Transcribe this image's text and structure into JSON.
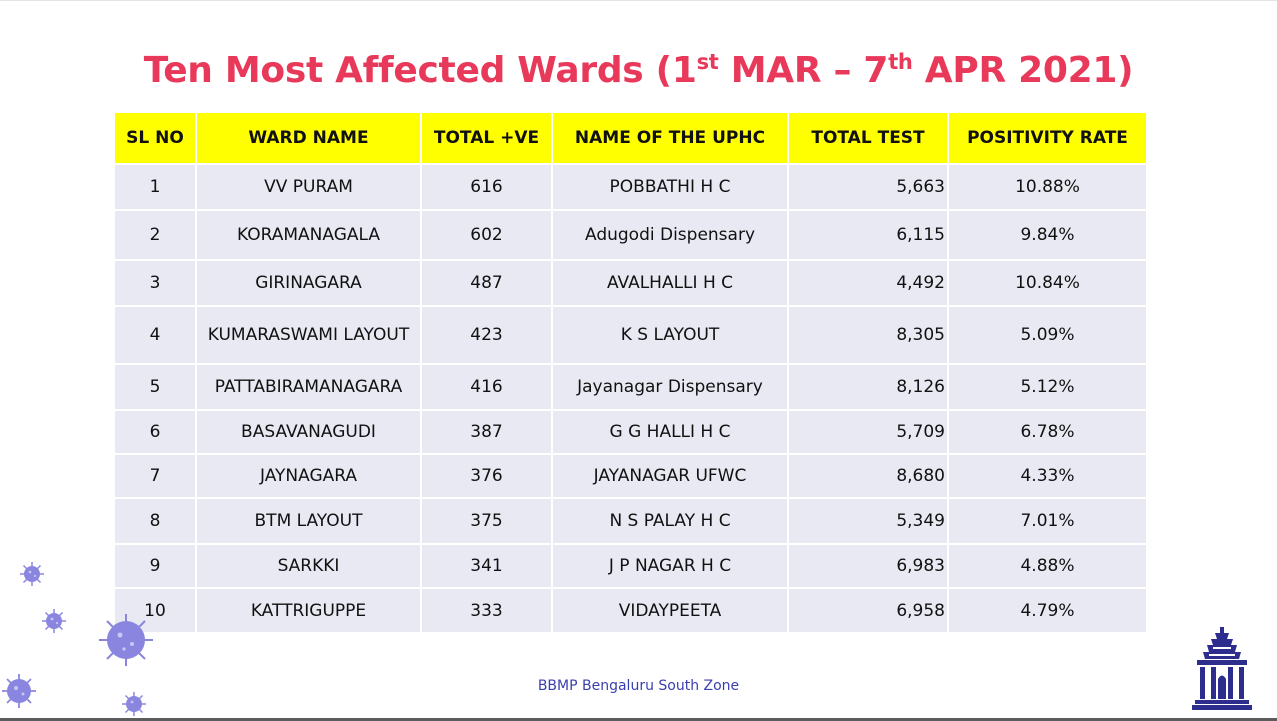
{
  "slide": {
    "title_main": "Ten Most Affected Wards (1",
    "title_sup1": "st",
    "title_mid": " MAR – 7",
    "title_sup2": "th",
    "title_end": " APR 2021)",
    "footer": "BBMP Bengaluru South Zone",
    "logo_icon": "temple-emblem-icon",
    "decor_icon": "virus-icon"
  },
  "table": {
    "headers": [
      "SL NO",
      "WARD NAME",
      "TOTAL +VE",
      "NAME OF THE UPHC",
      "TOTAL TEST",
      "POSITIVITY RATE"
    ],
    "rows": [
      {
        "sl": "1",
        "ward": "VV PURAM",
        "positive": "616",
        "uphc": "POBBATHI H C",
        "tests": "5,663",
        "rate": "10.88%"
      },
      {
        "sl": "2",
        "ward": "KORAMANAGALA",
        "positive": "602",
        "uphc": "Adugodi Dispensary",
        "tests": "6,115",
        "rate": "9.84%"
      },
      {
        "sl": "3",
        "ward": "GIRINAGARA",
        "positive": "487",
        "uphc": "AVALHALLI H C",
        "tests": "4,492",
        "rate": "10.84%"
      },
      {
        "sl": "4",
        "ward": "KUMARASWAMI LAYOUT",
        "positive": "423",
        "uphc": "K S LAYOUT",
        "tests": "8,305",
        "rate": "5.09%"
      },
      {
        "sl": "5",
        "ward": "PATTABIRAMANAGARA",
        "positive": "416",
        "uphc": "Jayanagar Dispensary",
        "tests": "8,126",
        "rate": "5.12%"
      },
      {
        "sl": "6",
        "ward": "BASAVANAGUDI",
        "positive": "387",
        "uphc": "G G HALLI H C",
        "tests": "5,709",
        "rate": "6.78%"
      },
      {
        "sl": "7",
        "ward": "JAYNAGARA",
        "positive": "376",
        "uphc": "JAYANAGAR UFWC",
        "tests": "8,680",
        "rate": "4.33%"
      },
      {
        "sl": "8",
        "ward": "BTM LAYOUT",
        "positive": "375",
        "uphc": "N S PALAY H C",
        "tests": "5,349",
        "rate": "7.01%"
      },
      {
        "sl": "9",
        "ward": "SARKKI",
        "positive": "341",
        "uphc": "J P NAGAR H C",
        "tests": "6,983",
        "rate": "4.88%"
      },
      {
        "sl": "10",
        "ward": "KATTRIGUPPE",
        "positive": "333",
        "uphc": "VIDAYPEETA",
        "tests": "6,958",
        "rate": "4.79%"
      }
    ]
  }
}
